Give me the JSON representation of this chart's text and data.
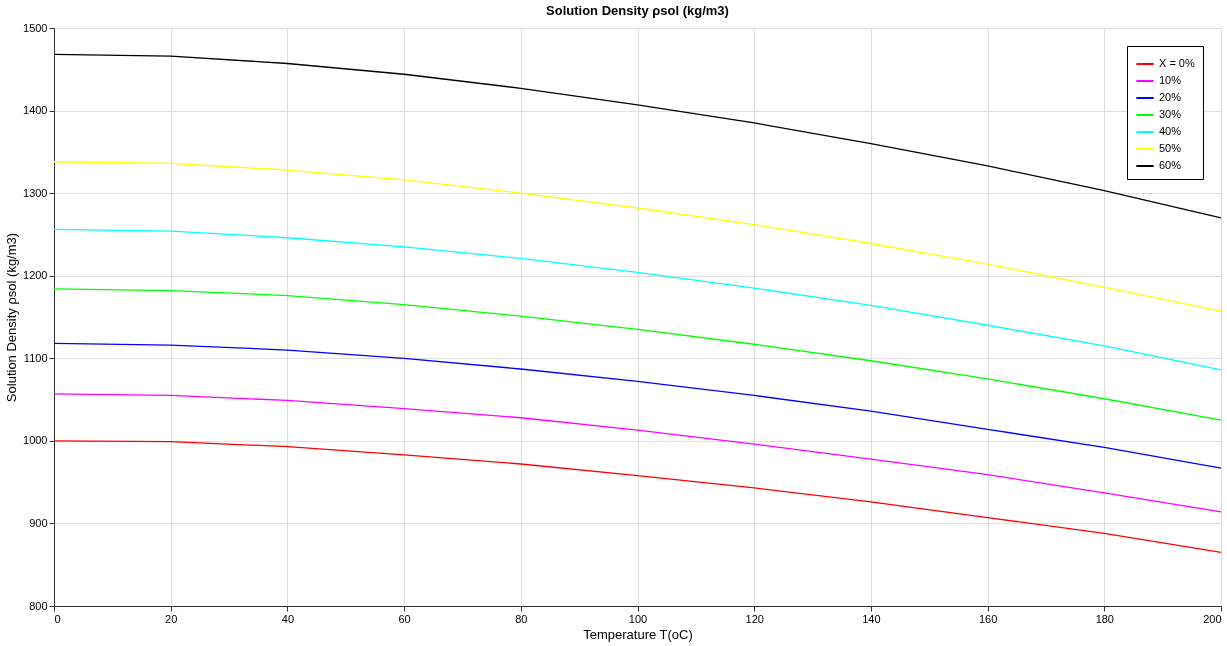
{
  "chart_data": {
    "type": "line",
    "title": "Solution Density ρsol (kg/m3)",
    "xlabel": "Temperature T(oC)",
    "ylabel": "Solution Density ρsol (kg/m3)",
    "x": [
      0,
      20,
      40,
      60,
      80,
      100,
      120,
      140,
      160,
      180,
      200
    ],
    "series": [
      {
        "name": "X = 0%",
        "color": "#ff0000",
        "values": [
          1000,
          999,
          993,
          983,
          972,
          958,
          943,
          926,
          907,
          888,
          865
        ]
      },
      {
        "name": "10%",
        "color": "#ff00ff",
        "values": [
          1057,
          1055,
          1049,
          1039,
          1028,
          1013,
          996,
          978,
          959,
          937,
          914
        ]
      },
      {
        "name": "20%",
        "color": "#0000ff",
        "values": [
          1118,
          1116,
          1110,
          1100,
          1087,
          1072,
          1055,
          1036,
          1014,
          992,
          967
        ]
      },
      {
        "name": "30%",
        "color": "#00ff00",
        "values": [
          1184,
          1182,
          1176,
          1165,
          1151,
          1135,
          1117,
          1097,
          1075,
          1051,
          1025
        ]
      },
      {
        "name": "40%",
        "color": "#00ffff",
        "values": [
          1256,
          1254,
          1246,
          1235,
          1221,
          1204,
          1185,
          1164,
          1140,
          1115,
          1086
        ]
      },
      {
        "name": "50%",
        "color": "#ffff00",
        "values": [
          1338,
          1336,
          1328,
          1316,
          1300,
          1282,
          1262,
          1239,
          1214,
          1186,
          1157
        ]
      },
      {
        "name": "60%",
        "color": "#000000",
        "values": [
          1468,
          1466,
          1457,
          1444,
          1427,
          1407,
          1385,
          1360,
          1333,
          1303,
          1270
        ]
      }
    ],
    "xlim": [
      0,
      200
    ],
    "xticks": [
      0,
      20,
      40,
      60,
      80,
      100,
      120,
      140,
      160,
      180,
      200
    ],
    "ylim": [
      800,
      1500
    ],
    "yticks": [
      800,
      900,
      1000,
      1100,
      1200,
      1300,
      1400,
      1500
    ],
    "grid": true,
    "legend": "top right",
    "line_style": "solid",
    "marker": "none"
  }
}
